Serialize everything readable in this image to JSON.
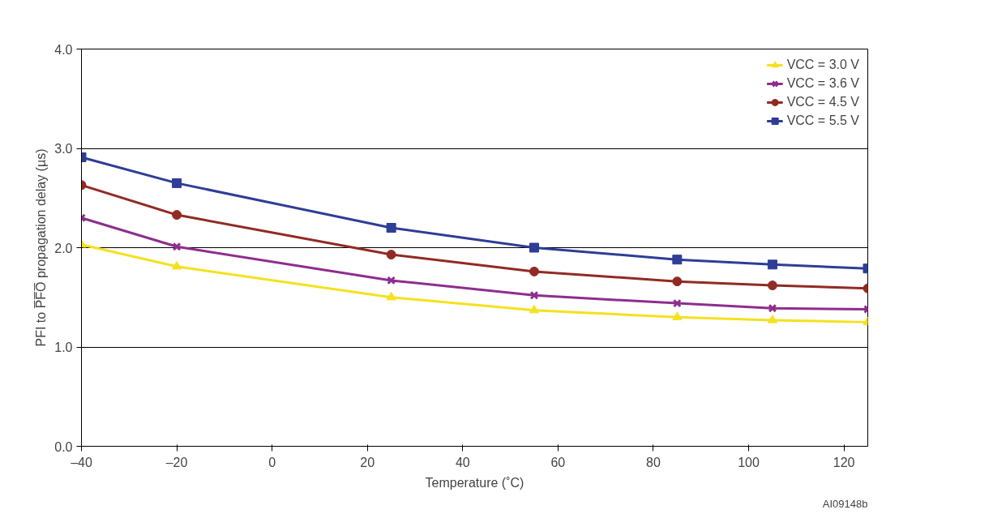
{
  "chart_data": {
    "type": "line",
    "xlabel": "Temperature (˚C)",
    "ylabel": "PFI to P̅F̅O̅ propagation delay (µs)",
    "x": [
      -40,
      -20,
      25,
      55,
      85,
      105,
      125
    ],
    "series": [
      {
        "name": "VCC = 3.0 V",
        "color": "#f5e11e",
        "marker": "triangle",
        "values": [
          2.03,
          1.81,
          1.5,
          1.37,
          1.3,
          1.27,
          1.25
        ]
      },
      {
        "name": "VCC = 3.6 V",
        "color": "#8e2d8e",
        "marker": "cross",
        "values": [
          2.3,
          2.01,
          1.67,
          1.52,
          1.44,
          1.39,
          1.38
        ]
      },
      {
        "name": "VCC = 4.5 V",
        "color": "#922a23",
        "marker": "circle",
        "values": [
          2.63,
          2.33,
          1.93,
          1.76,
          1.66,
          1.62,
          1.59
        ]
      },
      {
        "name": "VCC = 5.5 V",
        "color": "#2e3d96",
        "marker": "square",
        "values": [
          2.91,
          2.65,
          2.2,
          2.0,
          1.88,
          1.83,
          1.79
        ]
      }
    ],
    "xlim": [
      -40,
      125
    ],
    "ylim": [
      0,
      4
    ],
    "xticks": [
      {
        "value": -40,
        "label": "–40"
      },
      {
        "value": -20,
        "label": "–20"
      },
      0,
      20,
      40,
      60,
      80,
      100,
      120
    ],
    "yticks": [
      {
        "value": 0,
        "label": "0.0"
      },
      {
        "value": 1,
        "label": "1.0"
      },
      {
        "value": 2,
        "label": "2.0"
      },
      {
        "value": 3,
        "label": "3.0"
      },
      {
        "value": 4,
        "label": "4.0"
      }
    ],
    "grid": "y",
    "legend": "top right",
    "line_style": "solid",
    "annotations": [
      "AI09148b"
    ]
  }
}
